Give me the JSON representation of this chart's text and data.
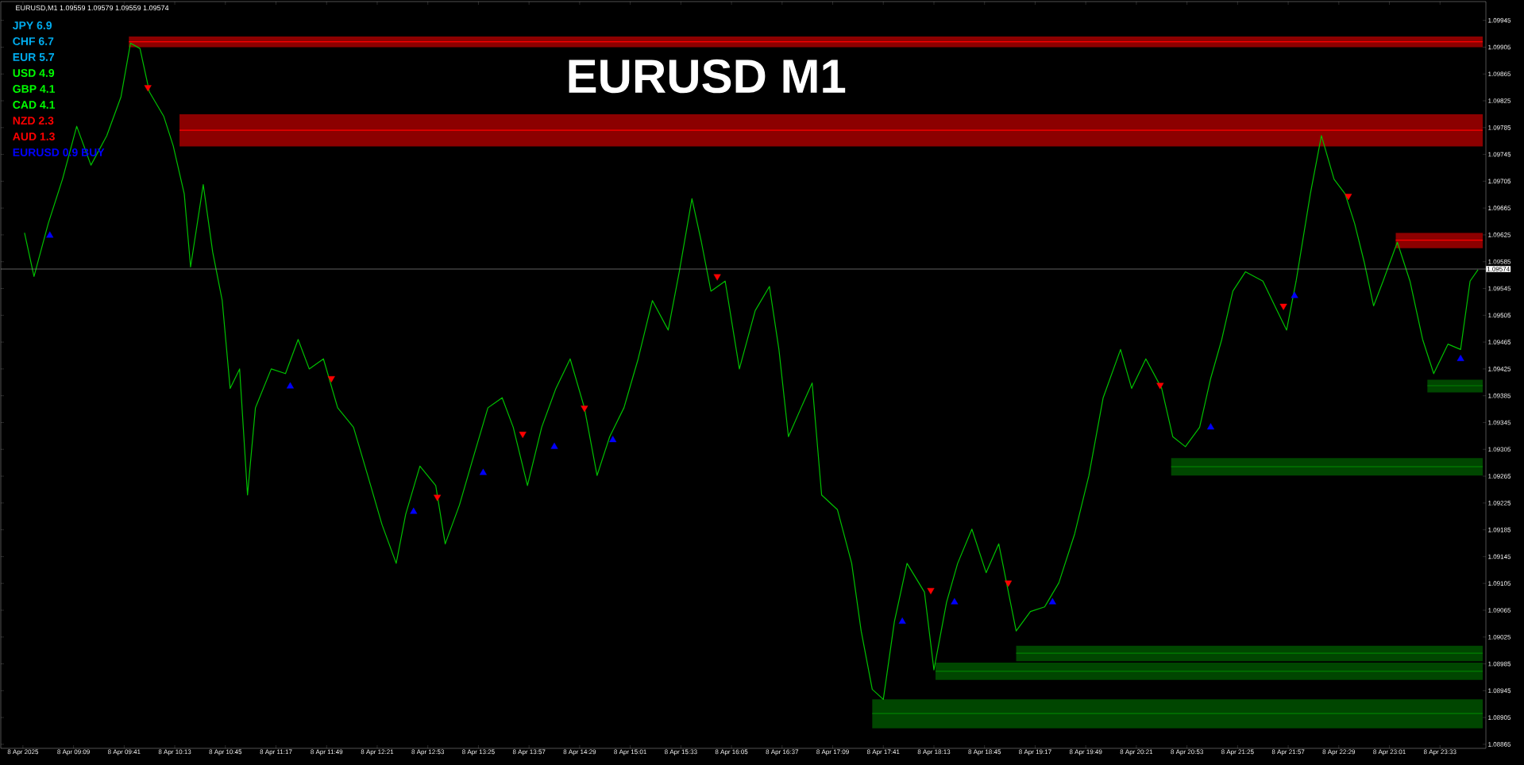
{
  "chart_data": {
    "type": "line",
    "title": "EURUSD M1",
    "annotations": [
      "EURUSD,M1  1.09559 1.09579 1.09559 1.09574",
      "JPY 6.9",
      "CHF 6.7",
      "EUR 5.7",
      "USD 4.9",
      "GBP 4.1",
      "CAD 4.1",
      "NZD 2.3",
      "AUD 1.3",
      "EURUSD 0.9 BUY"
    ],
    "xlim": [
      "2025-04-08T08:23",
      "2025-04-09T00:02"
    ],
    "ylim": [
      1.08859,
      1.09973
    ],
    "xticks": [
      {
        "value": "2025-04-08T08:37",
        "label": "8 Apr 2025"
      },
      {
        "value": "2025-04-08T09:09",
        "label": "8 Apr 09:09"
      },
      {
        "value": "2025-04-08T09:41",
        "label": "8 Apr 09:41"
      },
      {
        "value": "2025-04-08T10:13",
        "label": "8 Apr 10:13"
      },
      {
        "value": "2025-04-08T10:45",
        "label": "8 Apr 10:45"
      },
      {
        "value": "2025-04-08T11:17",
        "label": "8 Apr 11:17"
      },
      {
        "value": "2025-04-08T11:49",
        "label": "8 Apr 11:49"
      },
      {
        "value": "2025-04-08T12:21",
        "label": "8 Apr 12:21"
      },
      {
        "value": "2025-04-08T12:53",
        "label": "8 Apr 12:53"
      },
      {
        "value": "2025-04-08T13:25",
        "label": "8 Apr 13:25"
      },
      {
        "value": "2025-04-08T13:57",
        "label": "8 Apr 13:57"
      },
      {
        "value": "2025-04-08T14:29",
        "label": "8 Apr 14:29"
      },
      {
        "value": "2025-04-08T15:01",
        "label": "8 Apr 15:01"
      },
      {
        "value": "2025-04-08T15:33",
        "label": "8 Apr 15:33"
      },
      {
        "value": "2025-04-08T16:05",
        "label": "8 Apr 16:05"
      },
      {
        "value": "2025-04-08T16:37",
        "label": "8 Apr 16:37"
      },
      {
        "value": "2025-04-08T17:09",
        "label": "8 Apr 17:09"
      },
      {
        "value": "2025-04-08T17:41",
        "label": "8 Apr 17:41"
      },
      {
        "value": "2025-04-08T18:13",
        "label": "8 Apr 18:13"
      },
      {
        "value": "2025-04-08T18:45",
        "label": "8 Apr 18:45"
      },
      {
        "value": "2025-04-08T19:17",
        "label": "8 Apr 19:17"
      },
      {
        "value": "2025-04-08T19:49",
        "label": "8 Apr 19:49"
      },
      {
        "value": "2025-04-08T20:21",
        "label": "8 Apr 20:21"
      },
      {
        "value": "2025-04-08T20:53",
        "label": "8 Apr 20:53"
      },
      {
        "value": "2025-04-08T21:25",
        "label": "8 Apr 21:25"
      },
      {
        "value": "2025-04-08T21:57",
        "label": "8 Apr 21:57"
      },
      {
        "value": "2025-04-08T22:29",
        "label": "8 Apr 22:29"
      },
      {
        "value": "2025-04-08T23:01",
        "label": "8 Apr 23:01"
      },
      {
        "value": "2025-04-08T23:33",
        "label": "8 Apr 23:33"
      }
    ],
    "yticks": [
      1.08865,
      1.08905,
      1.08945,
      1.08985,
      1.09025,
      1.09065,
      1.09105,
      1.09145,
      1.09185,
      1.09225,
      1.09265,
      1.09305,
      1.09345,
      1.09385,
      1.09425,
      1.09465,
      1.09505,
      1.09545,
      1.09585,
      1.09625,
      1.09665,
      1.09705,
      1.09745,
      1.09785,
      1.09825,
      1.09865,
      1.09905,
      1.09945
    ],
    "ref_lines": [
      {
        "axis": "y",
        "value": 1.09574,
        "label": "1.09574",
        "color": "#a0a0a0"
      }
    ],
    "series": [
      {
        "color": "#00c000",
        "x": [
          "2025-04-08T08:38",
          "2025-04-08T08:44",
          "2025-04-08T08:53",
          "2025-04-08T09:02",
          "2025-04-08T09:11",
          "2025-04-08T09:20",
          "2025-04-08T09:30",
          "2025-04-08T09:39",
          "2025-04-08T09:45",
          "2025-04-08T09:51",
          "2025-04-08T09:57",
          "2025-04-08T10:06",
          "2025-04-08T10:12",
          "2025-04-08T10:19",
          "2025-04-08T10:23",
          "2025-04-08T10:31",
          "2025-04-08T10:37",
          "2025-04-08T10:43",
          "2025-04-08T10:48",
          "2025-04-08T10:54",
          "2025-04-08T10:59",
          "2025-04-08T11:04",
          "2025-04-08T11:14",
          "2025-04-08T11:23",
          "2025-04-08T11:31",
          "2025-04-08T11:38",
          "2025-04-08T11:47",
          "2025-04-08T11:56",
          "2025-04-08T12:06",
          "2025-04-08T12:15",
          "2025-04-08T12:24",
          "2025-04-08T12:33",
          "2025-04-08T12:39",
          "2025-04-08T12:48",
          "2025-04-08T12:58",
          "2025-04-08T13:04",
          "2025-04-08T13:13",
          "2025-04-08T13:22",
          "2025-04-08T13:31",
          "2025-04-08T13:40",
          "2025-04-08T13:47",
          "2025-04-08T13:56",
          "2025-04-08T14:05",
          "2025-04-08T14:14",
          "2025-04-08T14:23",
          "2025-04-08T14:32",
          "2025-04-08T14:40",
          "2025-04-08T14:48",
          "2025-04-08T14:57",
          "2025-04-08T15:06",
          "2025-04-08T15:15",
          "2025-04-08T15:25",
          "2025-04-08T15:32",
          "2025-04-08T15:40",
          "2025-04-08T15:46",
          "2025-04-08T15:52",
          "2025-04-08T16:01",
          "2025-04-08T16:10",
          "2025-04-08T16:20",
          "2025-04-08T16:29",
          "2025-04-08T16:35",
          "2025-04-08T16:41",
          "2025-04-08T16:49",
          "2025-04-08T16:56",
          "2025-04-08T17:02",
          "2025-04-08T17:12",
          "2025-04-08T17:21",
          "2025-04-08T17:27",
          "2025-04-08T17:34",
          "2025-04-08T17:41",
          "2025-04-08T17:48",
          "2025-04-08T17:56",
          "2025-04-08T18:07",
          "2025-04-08T18:13",
          "2025-04-08T18:21",
          "2025-04-08T18:28",
          "2025-04-08T18:37",
          "2025-04-08T18:46",
          "2025-04-08T18:54",
          "2025-04-08T19:05",
          "2025-04-08T19:14",
          "2025-04-08T19:23",
          "2025-04-08T19:32",
          "2025-04-08T19:42",
          "2025-04-08T19:51",
          "2025-04-08T20:00",
          "2025-04-08T20:11",
          "2025-04-08T20:18",
          "2025-04-08T20:27",
          "2025-04-08T20:37",
          "2025-04-08T20:44",
          "2025-04-08T20:52",
          "2025-04-08T21:01",
          "2025-04-08T21:08",
          "2025-04-08T21:15",
          "2025-04-08T21:22",
          "2025-04-08T21:30",
          "2025-04-08T21:41",
          "2025-04-08T21:50",
          "2025-04-08T21:56",
          "2025-04-08T22:02",
          "2025-04-08T22:11",
          "2025-04-08T22:18",
          "2025-04-08T22:26",
          "2025-04-08T22:33",
          "2025-04-08T22:39",
          "2025-04-08T22:45",
          "2025-04-08T22:51",
          "2025-04-08T22:57",
          "2025-04-08T23:06",
          "2025-04-08T23:14",
          "2025-04-08T23:22",
          "2025-04-08T23:29",
          "2025-04-08T23:38",
          "2025-04-08T23:46",
          "2025-04-08T23:52",
          "2025-04-08T23:57"
        ],
        "values": [
          1.09628,
          1.09563,
          1.09642,
          1.09708,
          1.09787,
          1.09729,
          1.09773,
          1.09831,
          1.09911,
          1.09903,
          1.09838,
          1.09802,
          1.09758,
          1.09686,
          1.09577,
          1.097,
          1.09599,
          1.09527,
          1.09396,
          1.09425,
          1.09237,
          1.09367,
          1.09425,
          1.09418,
          1.09469,
          1.09425,
          1.0944,
          1.09367,
          1.09338,
          1.09266,
          1.09193,
          1.09135,
          1.09208,
          1.0928,
          1.09251,
          1.09164,
          1.09222,
          1.09295,
          1.09367,
          1.09382,
          1.09338,
          1.09251,
          1.09338,
          1.09396,
          1.0944,
          1.09367,
          1.09266,
          1.09324,
          1.09367,
          1.0944,
          1.09527,
          1.09483,
          1.0957,
          1.09679,
          1.09614,
          1.09541,
          1.09556,
          1.09425,
          1.09512,
          1.09548,
          1.09454,
          1.09324,
          1.09367,
          1.09404,
          1.09237,
          1.09215,
          1.09135,
          1.09034,
          1.08947,
          1.08932,
          1.09048,
          1.09135,
          1.09092,
          1.08976,
          1.09077,
          1.09135,
          1.09186,
          1.09121,
          1.09164,
          1.09034,
          1.09063,
          1.0907,
          1.09106,
          1.09179,
          1.09266,
          1.09382,
          1.09454,
          1.09396,
          1.0944,
          1.09396,
          1.09324,
          1.09309,
          1.09338,
          1.09411,
          1.09469,
          1.09541,
          1.0957,
          1.09556,
          1.09512,
          1.09483,
          1.09556,
          1.09686,
          1.09773,
          1.09708,
          1.09686,
          1.09642,
          1.09585,
          1.09519,
          1.09556,
          1.09614,
          1.09556,
          1.09469,
          1.09418,
          1.09462,
          1.09454,
          1.09556,
          1.09573
        ]
      },
      {
        "type": "scatter",
        "marker": "triangle",
        "color": "#0000ff",
        "x": [
          "2025-04-08T08:54",
          "2025-04-08T11:26",
          "2025-04-08T12:44",
          "2025-04-08T13:28",
          "2025-04-08T14:13",
          "2025-04-08T14:50",
          "2025-04-08T17:53",
          "2025-04-08T18:26",
          "2025-04-08T19:28",
          "2025-04-08T21:08",
          "2025-04-08T22:01",
          "2025-04-08T23:46"
        ],
        "values": [
          1.09624,
          1.09399,
          1.09212,
          1.0927,
          1.09309,
          1.09319,
          1.09048,
          1.09077,
          1.09077,
          1.09338,
          1.09534,
          1.0944
        ]
      },
      {
        "type": "scatter",
        "marker": "triangle_down",
        "color": "#ff0000",
        "x": [
          "2025-04-08T09:56",
          "2025-04-08T11:52",
          "2025-04-08T12:59",
          "2025-04-08T13:53",
          "2025-04-08T14:32",
          "2025-04-08T15:56",
          "2025-04-08T18:11",
          "2025-04-08T19:00",
          "2025-04-08T20:36",
          "2025-04-08T21:54",
          "2025-04-08T22:35"
        ],
        "values": [
          1.09845,
          1.09411,
          1.09234,
          1.09328,
          1.09367,
          1.09563,
          1.09095,
          1.09106,
          1.09401,
          1.09519,
          1.09683
        ]
      },
      {
        "color": "#ff0000",
        "x": [
          "2025-04-08T09:44",
          "2025-04-09T00:00"
        ],
        "values": [
          1.09913,
          1.09913
        ],
        "lower": [
          1.09905,
          1.09905
        ],
        "upper": [
          1.09921,
          1.09921
        ]
      },
      {
        "color": "#ff0000",
        "x": [
          "2025-04-08T10:16",
          "2025-04-09T00:00"
        ],
        "values": [
          1.09781,
          1.09781
        ],
        "lower": [
          1.09757,
          1.09757
        ],
        "upper": [
          1.09805,
          1.09805
        ]
      },
      {
        "color": "#ff0000",
        "x": [
          "2025-04-08T23:05",
          "2025-04-09T00:00"
        ],
        "values": [
          1.09617,
          1.09617
        ],
        "lower": [
          1.09605,
          1.09605
        ],
        "upper": [
          1.09628,
          1.09628
        ]
      },
      {
        "color": "#008000",
        "x": [
          "2025-04-08T23:25",
          "2025-04-09T00:00"
        ],
        "values": [
          1.094,
          1.094
        ],
        "lower": [
          1.0939,
          1.0939
        ],
        "upper": [
          1.09409,
          1.09409
        ]
      },
      {
        "color": "#008000",
        "x": [
          "2025-04-08T20:43",
          "2025-04-09T00:00"
        ],
        "values": [
          1.09279,
          1.09279
        ],
        "lower": [
          1.09266,
          1.09266
        ],
        "upper": [
          1.09292,
          1.09292
        ]
      },
      {
        "color": "#008000",
        "x": [
          "2025-04-08T19:05",
          "2025-04-09T00:00"
        ],
        "values": [
          1.09001,
          1.09001
        ],
        "lower": [
          1.08989,
          1.08989
        ],
        "upper": [
          1.09012,
          1.09012
        ]
      },
      {
        "color": "#008000",
        "x": [
          "2025-04-08T18:14",
          "2025-04-09T00:00"
        ],
        "values": [
          1.08974,
          1.08974
        ],
        "lower": [
          1.08961,
          1.08961
        ],
        "upper": [
          1.08987,
          1.08987
        ]
      },
      {
        "color": "#008000",
        "x": [
          "2025-04-08T17:34",
          "2025-04-09T00:00"
        ],
        "values": [
          1.08911,
          1.08911
        ],
        "lower": [
          1.08889,
          1.08889
        ],
        "upper": [
          1.08932,
          1.08932
        ]
      }
    ]
  }
}
